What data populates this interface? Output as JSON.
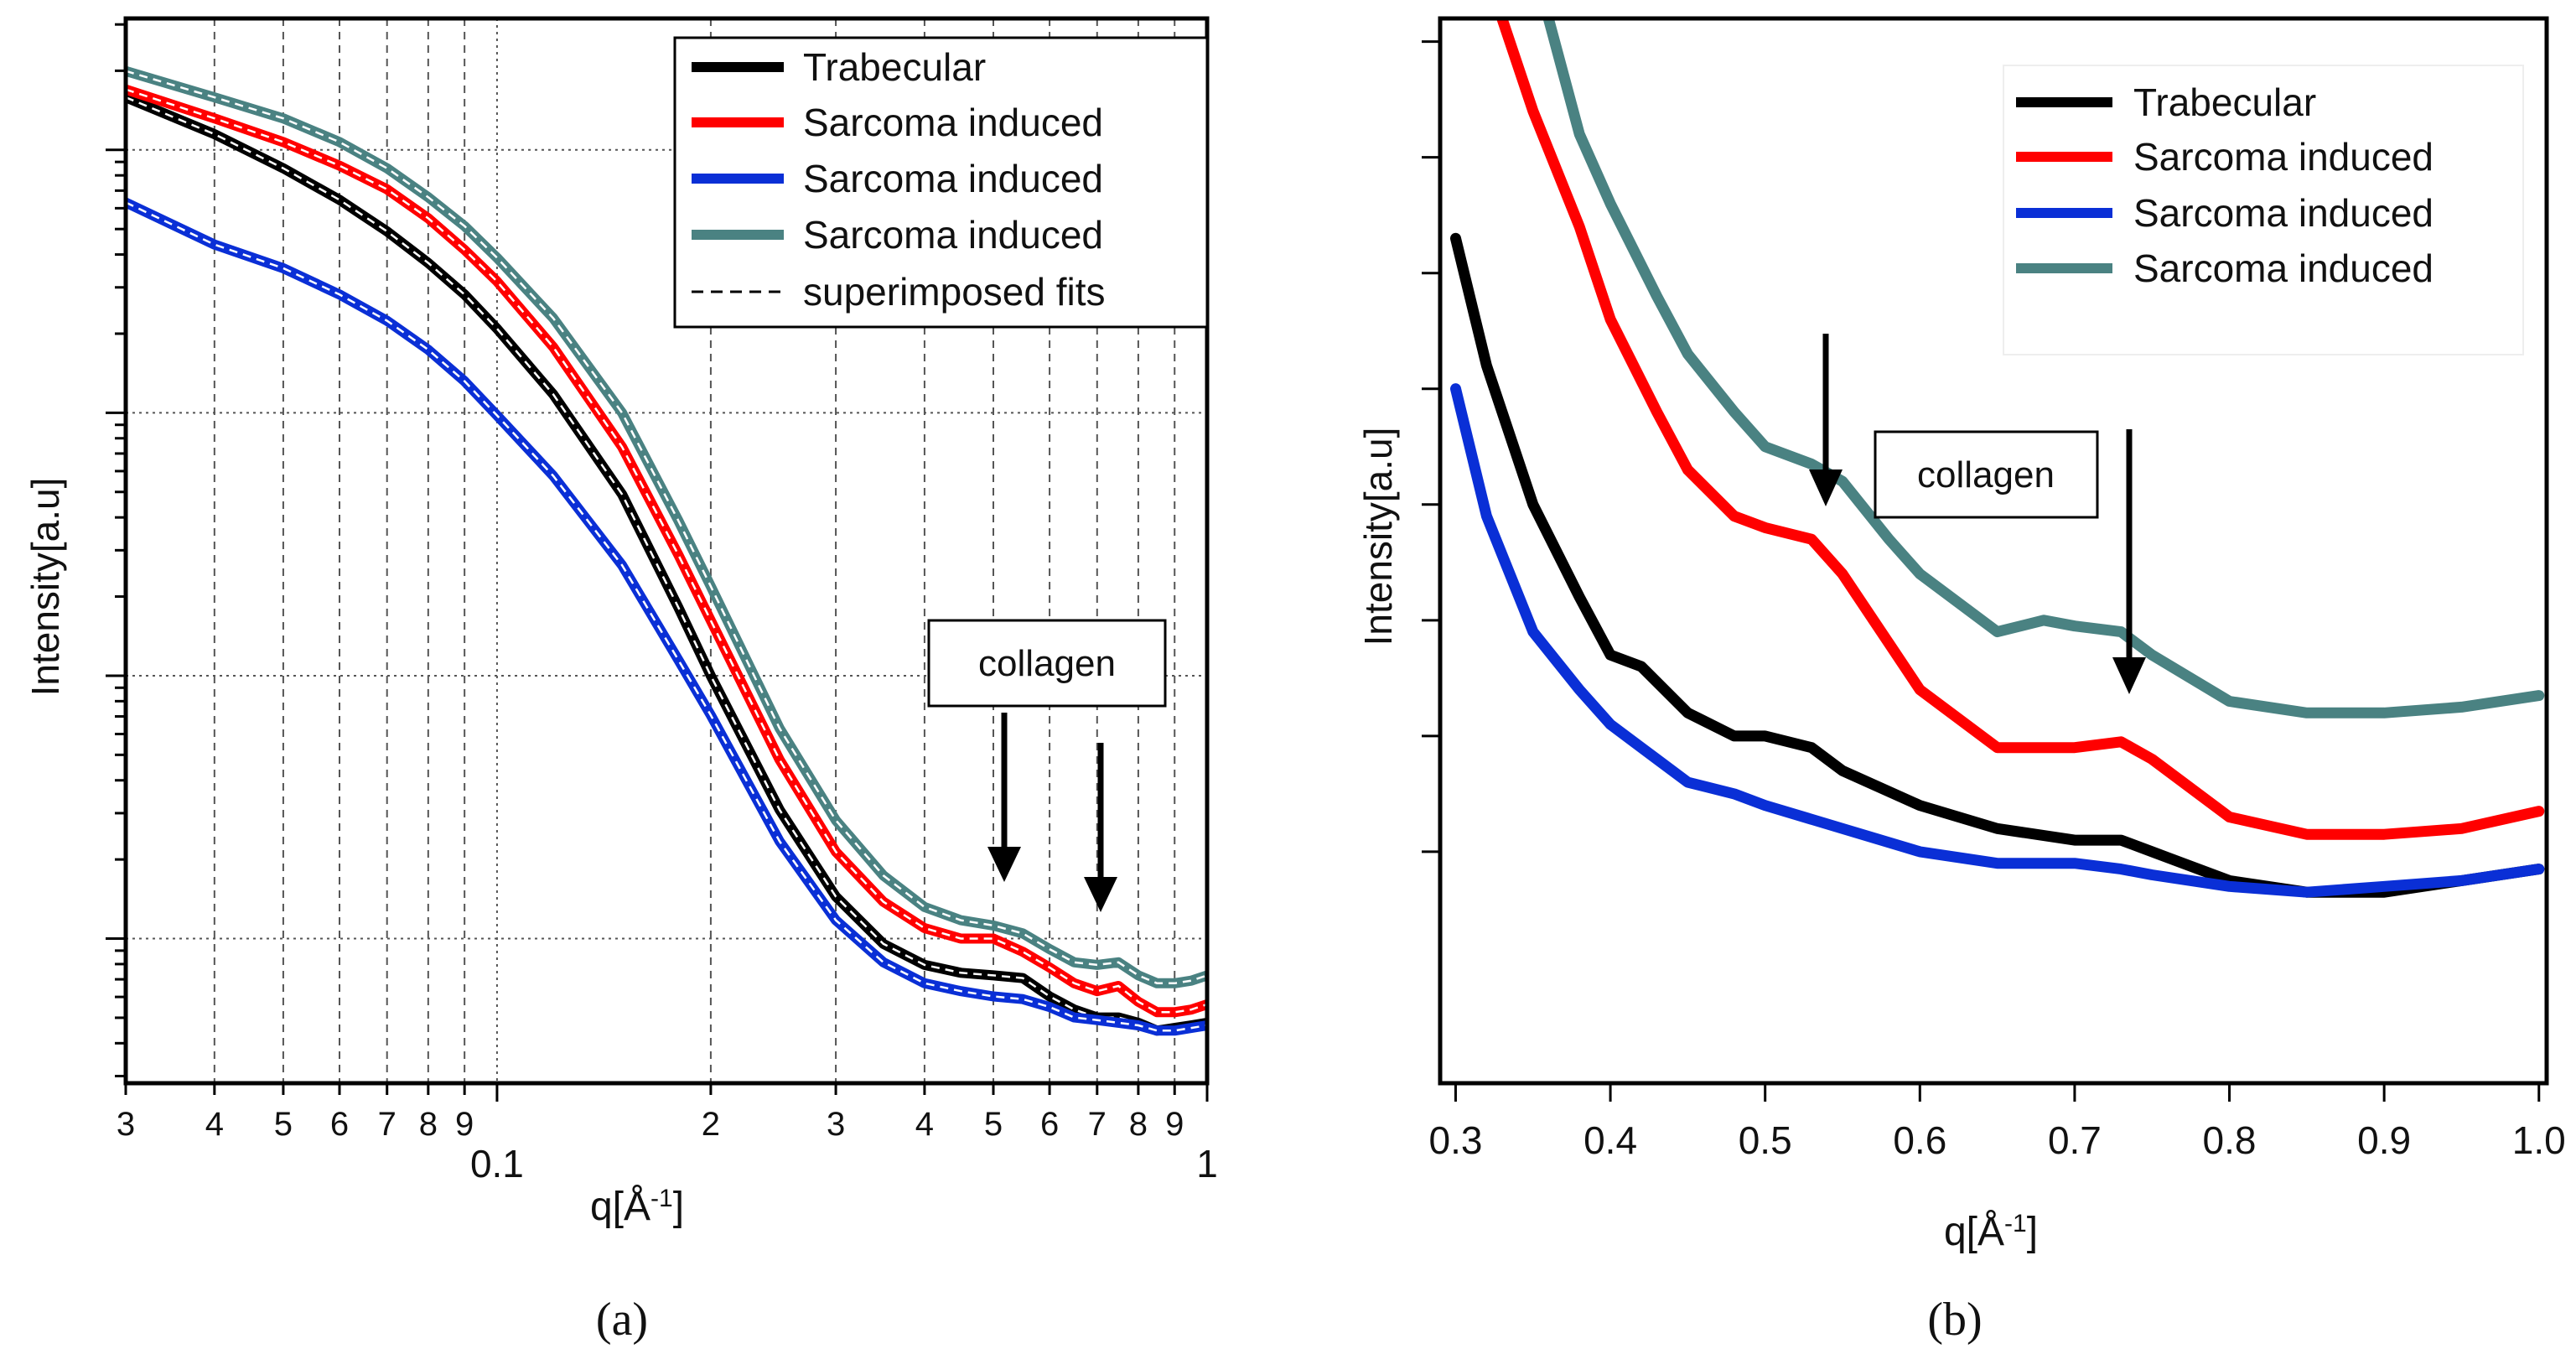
{
  "colors": {
    "trabecular": "#000000",
    "sarcoma_red": "#ff0000",
    "sarcoma_blue": "#0a2fd6",
    "sarcoma_teal": "#4a8282",
    "fit": "#ffffff",
    "grid": "#555555"
  },
  "chart_data": [
    {
      "panel": "(a)",
      "type": "line",
      "xscale": "log",
      "yscale": "log",
      "xlabel": "q[Å",
      "xlabel_sup": "-1",
      "xlabel_close": "]",
      "ylabel": "Intensity[a.u]",
      "xlim": [
        0.03,
        1.0
      ],
      "ylim_decades": [
        -3.55,
        0.5
      ],
      "y_axis_tick_labels": "none (log decades, unlabeled)",
      "grid": true,
      "xticks": [
        {
          "value": 0.03,
          "label": "3"
        },
        {
          "value": 0.04,
          "label": "4"
        },
        {
          "value": 0.05,
          "label": "5"
        },
        {
          "value": 0.06,
          "label": "6"
        },
        {
          "value": 0.07,
          "label": "7"
        },
        {
          "value": 0.08,
          "label": "8"
        },
        {
          "value": 0.09,
          "label": "9"
        },
        {
          "value": 0.1,
          "label": "0.1"
        },
        {
          "value": 0.2,
          "label": "2"
        },
        {
          "value": 0.3,
          "label": "3"
        },
        {
          "value": 0.4,
          "label": "4"
        },
        {
          "value": 0.5,
          "label": "5"
        },
        {
          "value": 0.6,
          "label": "6"
        },
        {
          "value": 0.7,
          "label": "7"
        },
        {
          "value": 0.8,
          "label": "8"
        },
        {
          "value": 0.9,
          "label": "9"
        },
        {
          "value": 1.0,
          "label": "1"
        }
      ],
      "legend_position": "top-right",
      "legend": [
        "Trabecular",
        "Sarcoma induced",
        "Sarcoma induced",
        "Sarcoma induced",
        "superimposed fits"
      ],
      "annotation": {
        "text": "collagen",
        "arrows_at_q": [
          0.53,
          0.73
        ]
      },
      "series": [
        {
          "name": "Trabecular",
          "color_key": "trabecular",
          "x": [
            0.03,
            0.04,
            0.05,
            0.06,
            0.07,
            0.08,
            0.09,
            0.1,
            0.12,
            0.15,
            0.18,
            0.2,
            0.25,
            0.3,
            0.35,
            0.4,
            0.45,
            0.5,
            0.55,
            0.6,
            0.65,
            0.7,
            0.75,
            0.8,
            0.85,
            0.9,
            0.95,
            1.0
          ],
          "y_log10": [
            0.2,
            0.06,
            -0.07,
            -0.19,
            -0.31,
            -0.43,
            -0.55,
            -0.68,
            -0.93,
            -1.31,
            -1.74,
            -2.0,
            -2.51,
            -2.84,
            -3.02,
            -3.1,
            -3.13,
            -3.14,
            -3.15,
            -3.22,
            -3.27,
            -3.3,
            -3.3,
            -3.32,
            -3.35,
            -3.34,
            -3.33,
            -3.32
          ]
        },
        {
          "name": "Sarcoma induced",
          "color_key": "sarcoma_red",
          "x": [
            0.03,
            0.04,
            0.05,
            0.06,
            0.07,
            0.08,
            0.09,
            0.1,
            0.12,
            0.15,
            0.18,
            0.2,
            0.25,
            0.3,
            0.35,
            0.4,
            0.45,
            0.5,
            0.55,
            0.6,
            0.65,
            0.7,
            0.75,
            0.8,
            0.85,
            0.9,
            0.95,
            1.0
          ],
          "y_log10": [
            0.23,
            0.12,
            0.03,
            -0.06,
            -0.15,
            -0.26,
            -0.38,
            -0.5,
            -0.75,
            -1.13,
            -1.54,
            -1.79,
            -2.32,
            -2.67,
            -2.86,
            -2.96,
            -3.0,
            -3.0,
            -3.05,
            -3.11,
            -3.17,
            -3.2,
            -3.18,
            -3.24,
            -3.28,
            -3.28,
            -3.27,
            -3.25
          ]
        },
        {
          "name": "Sarcoma induced",
          "color_key": "sarcoma_blue",
          "x": [
            0.03,
            0.04,
            0.05,
            0.06,
            0.07,
            0.08,
            0.09,
            0.1,
            0.12,
            0.15,
            0.18,
            0.2,
            0.25,
            0.3,
            0.35,
            0.4,
            0.45,
            0.5,
            0.55,
            0.6,
            0.65,
            0.7,
            0.75,
            0.8,
            0.85,
            0.9,
            0.95,
            1.0
          ],
          "y_log10": [
            -0.2,
            -0.36,
            -0.45,
            -0.55,
            -0.65,
            -0.76,
            -0.88,
            -1.01,
            -1.24,
            -1.58,
            -1.94,
            -2.15,
            -2.63,
            -2.93,
            -3.09,
            -3.17,
            -3.2,
            -3.22,
            -3.23,
            -3.26,
            -3.3,
            -3.31,
            -3.32,
            -3.33,
            -3.35,
            -3.35,
            -3.34,
            -3.33
          ]
        },
        {
          "name": "Sarcoma induced",
          "color_key": "sarcoma_teal",
          "x": [
            0.03,
            0.04,
            0.05,
            0.06,
            0.07,
            0.08,
            0.09,
            0.1,
            0.12,
            0.15,
            0.18,
            0.2,
            0.25,
            0.3,
            0.35,
            0.4,
            0.45,
            0.5,
            0.55,
            0.6,
            0.65,
            0.7,
            0.75,
            0.8,
            0.85,
            0.9,
            0.95,
            1.0
          ],
          "y_log10": [
            0.3,
            0.2,
            0.12,
            0.03,
            -0.07,
            -0.18,
            -0.29,
            -0.41,
            -0.64,
            -1.0,
            -1.41,
            -1.66,
            -2.2,
            -2.55,
            -2.76,
            -2.88,
            -2.93,
            -2.95,
            -2.98,
            -3.04,
            -3.09,
            -3.1,
            -3.09,
            -3.14,
            -3.17,
            -3.17,
            -3.16,
            -3.14
          ]
        }
      ]
    },
    {
      "panel": "(b)",
      "type": "line",
      "xscale": "linear",
      "yscale": "log",
      "xlabel": "q[Å",
      "xlabel_sup": "-1",
      "xlabel_close": "]",
      "ylabel": "Intensity[a.u]",
      "xlim": [
        0.29,
        1.005
      ],
      "ylim_log10": [
        -3.42,
        -2.5
      ],
      "y_axis_tick_labels": "none (unlabeled ticks)",
      "grid": false,
      "xticks": [
        {
          "value": 0.3,
          "label": "0.3"
        },
        {
          "value": 0.4,
          "label": "0.4"
        },
        {
          "value": 0.5,
          "label": "0.5"
        },
        {
          "value": 0.6,
          "label": "0.6"
        },
        {
          "value": 0.7,
          "label": "0.7"
        },
        {
          "value": 0.8,
          "label": "0.8"
        },
        {
          "value": 0.9,
          "label": "0.9"
        },
        {
          "value": 1.0,
          "label": "1.0"
        }
      ],
      "legend_position": "top-right",
      "legend": [
        "Trabecular",
        "Sarcoma induced",
        "Sarcoma induced",
        "Sarcoma induced"
      ],
      "annotation": {
        "text": "collagen",
        "arrows_at_q": [
          0.53,
          0.73
        ]
      },
      "series": [
        {
          "name": "Trabecular",
          "color_key": "trabecular",
          "x": [
            0.3,
            0.32,
            0.35,
            0.38,
            0.4,
            0.42,
            0.45,
            0.48,
            0.5,
            0.53,
            0.55,
            0.6,
            0.65,
            0.7,
            0.73,
            0.75,
            0.8,
            0.85,
            0.9,
            0.95,
            1.0
          ],
          "y_log10": [
            -2.69,
            -2.8,
            -2.92,
            -3.0,
            -3.05,
            -3.06,
            -3.1,
            -3.12,
            -3.12,
            -3.13,
            -3.15,
            -3.18,
            -3.2,
            -3.21,
            -3.21,
            -3.22,
            -3.245,
            -3.255,
            -3.255,
            -3.245,
            -3.235
          ]
        },
        {
          "name": "Sarcoma induced",
          "color_key": "sarcoma_red",
          "x": [
            0.33,
            0.35,
            0.38,
            0.4,
            0.43,
            0.45,
            0.48,
            0.5,
            0.53,
            0.55,
            0.58,
            0.6,
            0.65,
            0.7,
            0.73,
            0.75,
            0.8,
            0.85,
            0.9,
            0.95,
            1.0
          ],
          "y_log10": [
            -2.5,
            -2.58,
            -2.68,
            -2.76,
            -2.84,
            -2.89,
            -2.93,
            -2.94,
            -2.95,
            -2.98,
            -3.04,
            -3.08,
            -3.13,
            -3.13,
            -3.125,
            -3.14,
            -3.19,
            -3.205,
            -3.205,
            -3.2,
            -3.185
          ]
        },
        {
          "name": "Sarcoma induced",
          "color_key": "sarcoma_blue",
          "x": [
            0.3,
            0.32,
            0.35,
            0.38,
            0.4,
            0.43,
            0.45,
            0.48,
            0.5,
            0.55,
            0.6,
            0.65,
            0.7,
            0.73,
            0.75,
            0.8,
            0.85,
            0.9,
            0.95,
            1.0
          ],
          "y_log10": [
            -2.82,
            -2.93,
            -3.03,
            -3.08,
            -3.11,
            -3.14,
            -3.16,
            -3.17,
            -3.18,
            -3.2,
            -3.22,
            -3.23,
            -3.23,
            -3.235,
            -3.24,
            -3.25,
            -3.255,
            -3.25,
            -3.245,
            -3.235
          ]
        },
        {
          "name": "Sarcoma induced",
          "color_key": "sarcoma_teal",
          "x": [
            0.36,
            0.38,
            0.4,
            0.43,
            0.45,
            0.48,
            0.5,
            0.53,
            0.55,
            0.58,
            0.6,
            0.65,
            0.68,
            0.7,
            0.73,
            0.75,
            0.8,
            0.85,
            0.9,
            0.95,
            1.0
          ],
          "y_log10": [
            -2.5,
            -2.6,
            -2.66,
            -2.74,
            -2.79,
            -2.84,
            -2.87,
            -2.885,
            -2.9,
            -2.95,
            -2.98,
            -3.03,
            -3.02,
            -3.025,
            -3.03,
            -3.05,
            -3.09,
            -3.1,
            -3.1,
            -3.095,
            -3.085
          ]
        }
      ]
    }
  ],
  "panel_labels": [
    "(a)",
    "(b)"
  ]
}
